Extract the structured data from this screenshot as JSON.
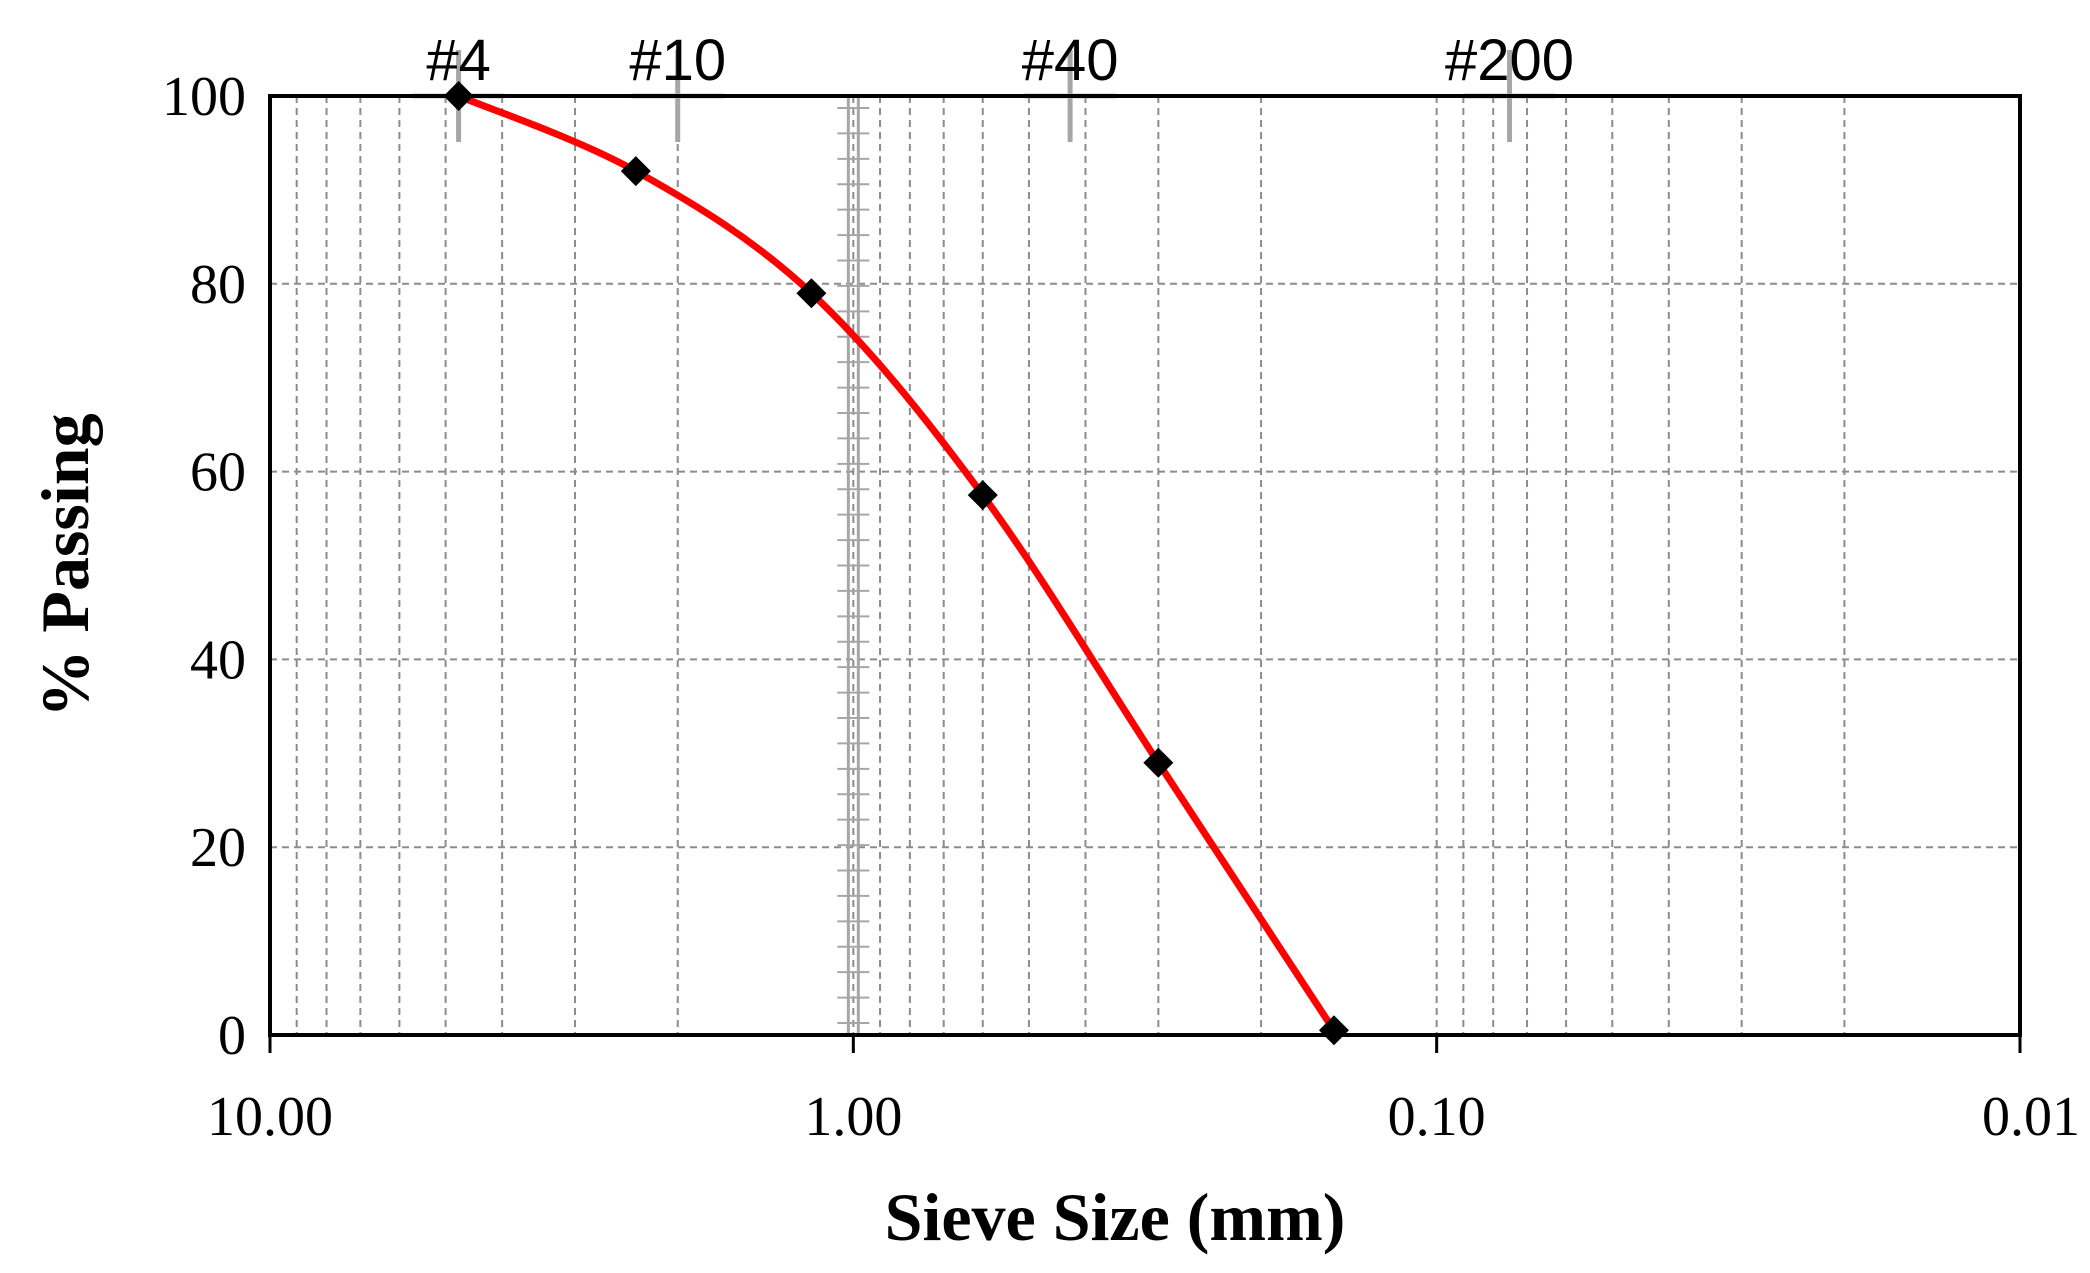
{
  "chart_data": {
    "type": "line",
    "xlabel": "Sieve Size (mm)",
    "ylabel": "% Passing",
    "x_scale": "log",
    "x_reversed": true,
    "xlim": [
      10,
      0.01
    ],
    "ylim": [
      0,
      100
    ],
    "grid": true,
    "x_tick_labels": [
      "10.00",
      "1.00",
      "0.10",
      "0.01"
    ],
    "x_tick_values": [
      10,
      1,
      0.1,
      0.01
    ],
    "y_tick_labels": [
      "0",
      "20",
      "40",
      "60",
      "80",
      "100"
    ],
    "y_tick_values": [
      0,
      20,
      40,
      60,
      80,
      100
    ],
    "series": [
      {
        "x": [
          4.75,
          2.36,
          1.18,
          0.6,
          0.3,
          0.15
        ],
        "y": [
          100,
          92,
          79,
          57.5,
          29,
          0.5
        ],
        "color": "#ff0000",
        "marker": "diamond",
        "marker_color": "#000000"
      }
    ],
    "annotations": [
      {
        "text": "#4",
        "x": 4.75
      },
      {
        "text": "#10",
        "x": 2.0
      },
      {
        "text": "#40",
        "x": 0.425
      },
      {
        "text": "#200",
        "x": 0.075
      }
    ]
  }
}
